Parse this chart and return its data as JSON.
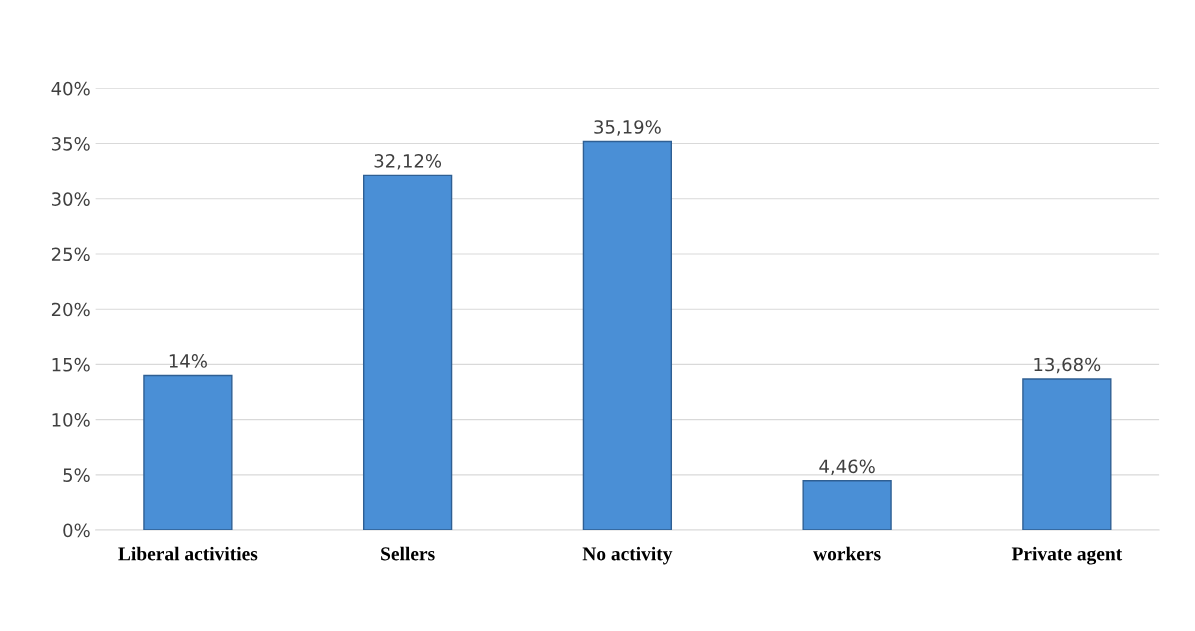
{
  "chart_data": {
    "type": "bar",
    "categories": [
      "Liberal activities",
      "Sellers",
      "No activity",
      "workers",
      "Private agent"
    ],
    "values": [
      14,
      32.12,
      35.19,
      4.46,
      13.68
    ],
    "value_labels": [
      "14%",
      "32,12%",
      "35,19%",
      "4,46%",
      "13,68%"
    ],
    "color": "#4a8fd6",
    "ylim": [
      0,
      40
    ],
    "yticks": [
      {
        "value": 0,
        "label": "0%"
      },
      {
        "value": 5,
        "label": "5%"
      },
      {
        "value": 10,
        "label": "10%"
      },
      {
        "value": 15,
        "label": "15%"
      },
      {
        "value": 20,
        "label": "20%"
      },
      {
        "value": 25,
        "label": "25%"
      },
      {
        "value": 30,
        "label": "30%"
      },
      {
        "value": 35,
        "label": "35%"
      },
      {
        "value": 40,
        "label": "40%"
      }
    ],
    "grid": "y",
    "legend": false
  }
}
